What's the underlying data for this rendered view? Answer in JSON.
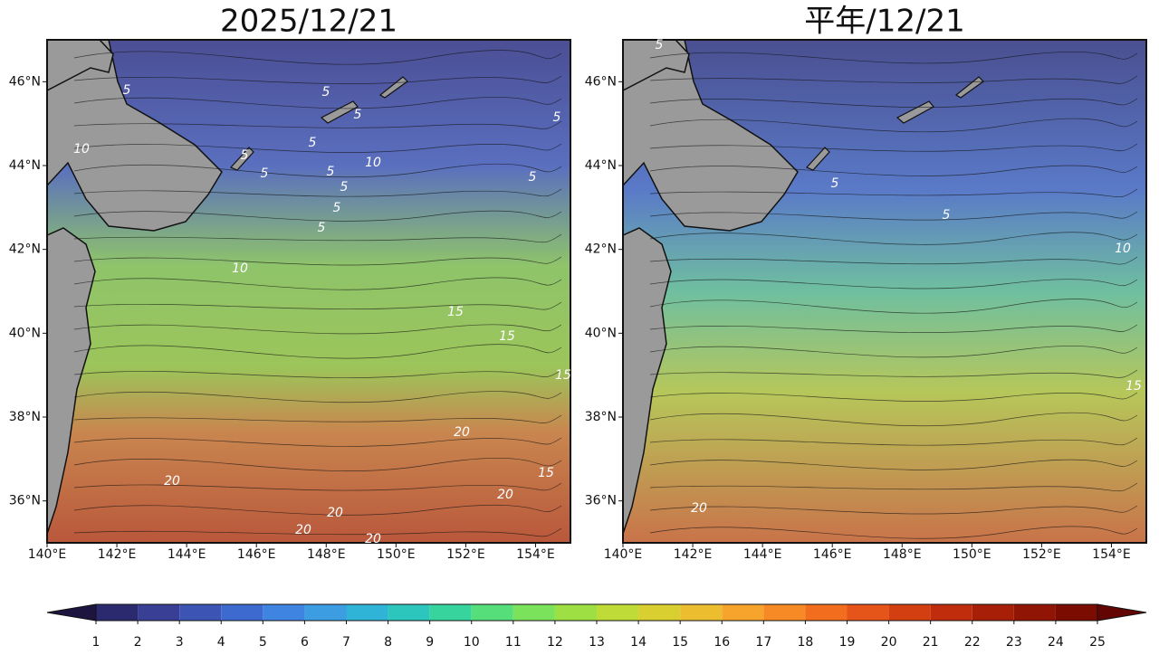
{
  "chart_data": {
    "type": "map",
    "xlim": [
      140,
      155
    ],
    "ylim": [
      35,
      47
    ],
    "xticks": [
      {
        "value": 140,
        "label": "140°E"
      },
      {
        "value": 142,
        "label": "142°E"
      },
      {
        "value": 144,
        "label": "144°E"
      },
      {
        "value": 146,
        "label": "146°E"
      },
      {
        "value": 148,
        "label": "148°E"
      },
      {
        "value": 150,
        "label": "150°E"
      },
      {
        "value": 152,
        "label": "152°E"
      },
      {
        "value": 154,
        "label": "154°E"
      }
    ],
    "yticks": [
      {
        "value": 36,
        "label": "36°N"
      },
      {
        "value": 38,
        "label": "38°N"
      },
      {
        "value": 40,
        "label": "40°N"
      },
      {
        "value": 42,
        "label": "42°N"
      },
      {
        "value": 44,
        "label": "44°N"
      },
      {
        "value": 46,
        "label": "46°N"
      }
    ],
    "panels": [
      {
        "title": "2025/12/21",
        "contour_labels": [
          10,
          5,
          5,
          5,
          5,
          5,
          5,
          5,
          5,
          5,
          5,
          5,
          5,
          10,
          10,
          15,
          15,
          15,
          20,
          20,
          20,
          20,
          20,
          20,
          15
        ]
      },
      {
        "title": "平年/12/21",
        "contour_labels": [
          5,
          5,
          5,
          10,
          15,
          20
        ]
      }
    ],
    "colorbar": {
      "ticks": [
        1,
        2,
        3,
        4,
        5,
        6,
        7,
        8,
        9,
        10,
        11,
        12,
        13,
        14,
        15,
        16,
        17,
        18,
        19,
        20,
        21,
        22,
        23,
        24,
        25
      ],
      "colors": [
        "#1e1440",
        "#2c2a6e",
        "#383f95",
        "#3c55b5",
        "#3c6acf",
        "#3e84e0",
        "#3c9de2",
        "#2fb3d6",
        "#2cc6bd",
        "#38d49d",
        "#56de7b",
        "#7ae25b",
        "#9ee043",
        "#bfdb37",
        "#d9cf30",
        "#ecbd2e",
        "#f6a42b",
        "#f88a25",
        "#f26e1e",
        "#e55418",
        "#d43f12",
        "#bf2d0c",
        "#a81f07",
        "#911504",
        "#7a0c02",
        "#620503"
      ]
    }
  }
}
